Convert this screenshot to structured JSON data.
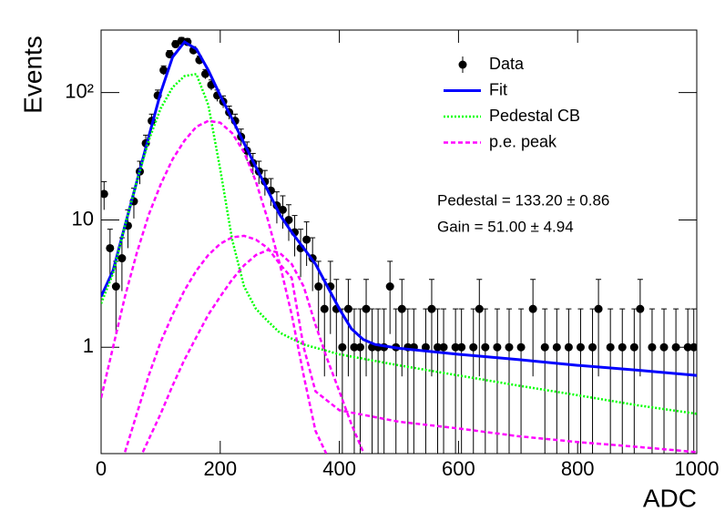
{
  "chart_data": {
    "type": "scatter",
    "log_y": true,
    "xlabel": "ADC",
    "ylabel": "Events",
    "xlim": [
      0,
      1000
    ],
    "ylim": [
      0.146,
      310
    ],
    "xticks": [
      0,
      200,
      400,
      600,
      800,
      1000
    ],
    "yticks": [
      1,
      10,
      {
        "value": 100,
        "label": "10²"
      }
    ],
    "annotations": [
      "Pedestal = 133.20 ± 0.86",
      "Gain = 51.00 ± 4.94"
    ],
    "series": [
      {
        "name": "Data",
        "color": "#000000",
        "style": "points",
        "x": [
          5,
          15,
          25,
          35,
          45,
          55,
          65,
          75,
          85,
          95,
          105,
          115,
          125,
          135,
          145,
          155,
          165,
          175,
          185,
          195,
          205,
          215,
          225,
          235,
          245,
          255,
          265,
          275,
          285,
          295,
          305,
          315,
          325,
          335,
          345,
          355,
          365,
          375,
          385,
          395,
          405,
          415,
          425,
          435,
          445,
          455,
          465,
          475,
          485,
          495,
          505,
          515,
          525,
          545,
          555,
          565,
          575,
          595,
          605,
          625,
          635,
          645,
          665,
          685,
          705,
          725,
          745,
          765,
          785,
          805,
          825,
          835,
          855,
          875,
          895,
          905,
          925,
          945,
          965,
          985,
          995
        ],
        "values": [
          16,
          6,
          3,
          5,
          9,
          14,
          24,
          40,
          60,
          95,
          150,
          200,
          240,
          255,
          250,
          215,
          180,
          140,
          115,
          95,
          85,
          70,
          60,
          45,
          35,
          28,
          24,
          20,
          17,
          13,
          12,
          10,
          8,
          6,
          7,
          5,
          3,
          2,
          3,
          2,
          1,
          2,
          1,
          1,
          2,
          1,
          1,
          1,
          3,
          1,
          2,
          1,
          1,
          1,
          2,
          1,
          1,
          1,
          1,
          1,
          2,
          1,
          1,
          1,
          1,
          2,
          1,
          1,
          1,
          1,
          1,
          2,
          1,
          1,
          1,
          2,
          1,
          1,
          1,
          1,
          1
        ],
        "errors": [
          4,
          2.45,
          1.73,
          2.24,
          3,
          3.74,
          4.9,
          6.32,
          7.75,
          9.75,
          12.25,
          14.14,
          15.49,
          15.97,
          15.81,
          14.66,
          13.42,
          11.83,
          10.72,
          9.75,
          9.22,
          8.37,
          7.75,
          6.71,
          5.92,
          5.29,
          4.9,
          4.47,
          4.12,
          3.61,
          3.46,
          3.16,
          2.83,
          2.45,
          2.65,
          2.24,
          1.73,
          1.41,
          1.73,
          1.41,
          1,
          1.41,
          1,
          1,
          1.41,
          1,
          1,
          1,
          1.73,
          1,
          1.41,
          1,
          1,
          1,
          1.41,
          1,
          1,
          1,
          1,
          1,
          1.41,
          1,
          1,
          1,
          1,
          1.41,
          1,
          1,
          1,
          1,
          1,
          1.41,
          1,
          1,
          1,
          1.41,
          1,
          1,
          1,
          1,
          1
        ]
      },
      {
        "name": "Fit",
        "color": "#0000ff",
        "style": "solid",
        "x": [
          0,
          20,
          40,
          60,
          80,
          100,
          120,
          140,
          160,
          180,
          200,
          220,
          240,
          260,
          280,
          300,
          320,
          340,
          360,
          380,
          400,
          420,
          440,
          460,
          500,
          600,
          700,
          800,
          900,
          1000
        ],
        "values": [
          2.5,
          4,
          9,
          20,
          45,
          100,
          190,
          250,
          220,
          150,
          95,
          62,
          40,
          26,
          17,
          11,
          8,
          6,
          4.5,
          3,
          2,
          1.4,
          1.15,
          1.05,
          0.98,
          0.88,
          0.8,
          0.72,
          0.66,
          0.6
        ]
      },
      {
        "name": "Pedestal CB",
        "color": "#00ff00",
        "style": "dotted",
        "x": [
          0,
          20,
          40,
          60,
          80,
          100,
          120,
          140,
          160,
          180,
          200,
          220,
          240,
          260,
          280,
          300,
          340,
          400,
          500,
          600,
          700,
          800,
          900,
          1000
        ],
        "values": [
          2.2,
          3.8,
          9,
          20,
          42,
          75,
          110,
          135,
          140,
          80,
          25,
          7,
          3,
          2,
          1.6,
          1.3,
          1.05,
          0.88,
          0.72,
          0.6,
          0.5,
          0.42,
          0.35,
          0.3
        ]
      },
      {
        "name": "p.e. peak",
        "color": "#ff00ff",
        "style": "dashed",
        "x": [
          0,
          20,
          40,
          60,
          80,
          100,
          120,
          140,
          160,
          180,
          200,
          220,
          240,
          260,
          280,
          300,
          320,
          340,
          360,
          378
        ],
        "values": [
          0.4,
          1,
          2.5,
          5.5,
          11,
          19,
          30,
          42,
          54,
          60,
          58,
          48,
          34,
          20,
          10,
          4.5,
          1.8,
          0.6,
          0.22,
          0.146
        ]
      },
      {
        "color": "#ff00ff",
        "style": "dashed",
        "x": [
          40,
          60,
          80,
          100,
          120,
          140,
          160,
          180,
          200,
          220,
          240,
          260,
          280,
          300,
          320,
          340,
          360,
          400,
          500,
          600,
          700,
          800,
          900,
          1000
        ],
        "values": [
          0.15,
          0.3,
          0.6,
          1.1,
          1.8,
          2.8,
          4,
          5.3,
          6.5,
          7.3,
          7.5,
          7,
          6,
          4.5,
          3.5,
          1,
          0.45,
          0.32,
          0.26,
          0.23,
          0.2,
          0.18,
          0.165,
          0.15
        ]
      },
      {
        "color": "#ff00ff",
        "style": "dashed",
        "x": [
          70,
          100,
          120,
          140,
          160,
          180,
          200,
          220,
          240,
          260,
          280,
          300,
          320,
          340,
          360,
          380,
          400,
          420,
          440
        ],
        "values": [
          0.15,
          0.3,
          0.5,
          0.8,
          1.2,
          1.8,
          2.5,
          3.4,
          4.4,
          5.3,
          5.8,
          5.5,
          4.5,
          3,
          1.5,
          0.8,
          0.45,
          0.25,
          0.15
        ]
      }
    ]
  }
}
